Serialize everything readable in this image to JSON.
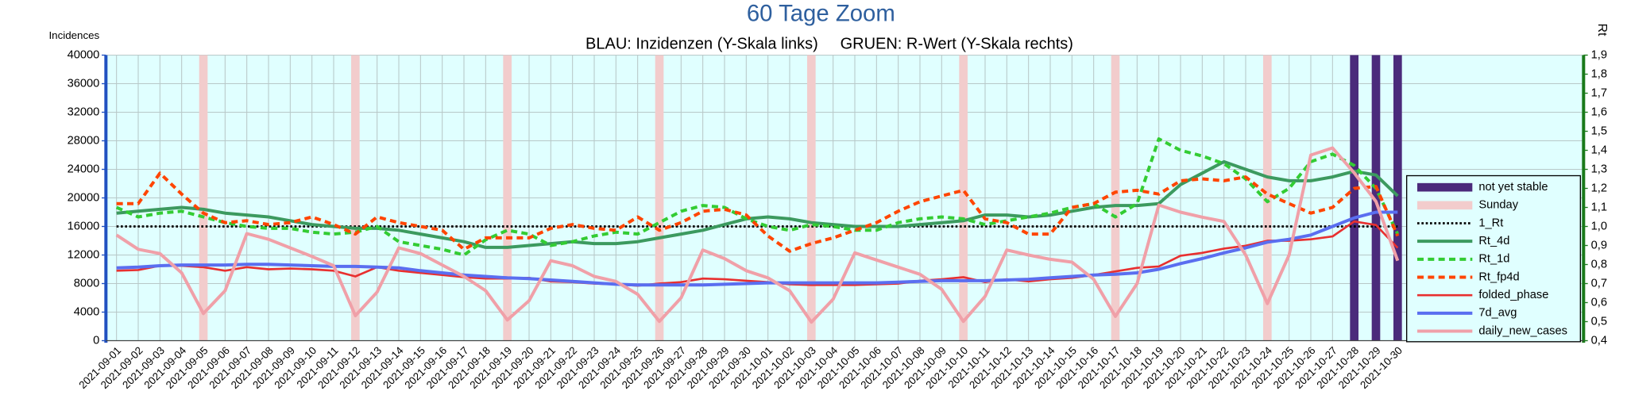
{
  "chart_data": {
    "type": "line",
    "title": "60 Tage Zoom",
    "subtitle": "BLAU: Inzidenzen (Y-Skala links)     GRUEN: R-Wert (Y-Skala rechts)",
    "ylabel": "Incidences",
    "y2label": "Rt",
    "categories": [
      "2021-09-01",
      "2021-09-02",
      "2021-09-03",
      "2021-09-04",
      "2021-09-05",
      "2021-09-06",
      "2021-09-07",
      "2021-09-08",
      "2021-09-09",
      "2021-09-10",
      "2021-09-11",
      "2021-09-12",
      "2021-09-13",
      "2021-09-14",
      "2021-09-15",
      "2021-09-16",
      "2021-09-17",
      "2021-09-18",
      "2021-09-19",
      "2021-09-20",
      "2021-09-21",
      "2021-09-22",
      "2021-09-23",
      "2021-09-24",
      "2021-09-25",
      "2021-09-26",
      "2021-09-27",
      "2021-09-28",
      "2021-09-29",
      "2021-09-30",
      "2021-10-01",
      "2021-10-02",
      "2021-10-03",
      "2021-10-04",
      "2021-10-05",
      "2021-10-06",
      "2021-10-07",
      "2021-10-08",
      "2021-10-09",
      "2021-10-10",
      "2021-10-11",
      "2021-10-12",
      "2021-10-13",
      "2021-10-14",
      "2021-10-15",
      "2021-10-16",
      "2021-10-17",
      "2021-10-18",
      "2021-10-19",
      "2021-10-20",
      "2021-10-21",
      "2021-10-22",
      "2021-10-23",
      "2021-10-24",
      "2021-10-25",
      "2021-10-26",
      "2021-10-27",
      "2021-10-28",
      "2021-10-29",
      "2021-10-30"
    ],
    "ylim": [
      0,
      40000
    ],
    "yticks": [
      0,
      4000,
      8000,
      12000,
      16000,
      20000,
      24000,
      28000,
      32000,
      36000,
      40000
    ],
    "y2lim": [
      0.4,
      1.9
    ],
    "y2ticks": [
      {
        "value": 0.4,
        "label": "0,4"
      },
      {
        "value": 0.5,
        "label": "0,5"
      },
      {
        "value": 0.6,
        "label": "0,6"
      },
      {
        "value": 0.7,
        "label": "0,7"
      },
      {
        "value": 0.8,
        "label": "0,8"
      },
      {
        "value": 0.9,
        "label": "0,9"
      },
      {
        "value": 1.0,
        "label": "1,0"
      },
      {
        "value": 1.1,
        "label": "1,1"
      },
      {
        "value": 1.2,
        "label": "1,2"
      },
      {
        "value": 1.3,
        "label": "1,3"
      },
      {
        "value": 1.4,
        "label": "1,4"
      },
      {
        "value": 1.5,
        "label": "1,5"
      },
      {
        "value": 1.6,
        "label": "1,6"
      },
      {
        "value": 1.7,
        "label": "1,7"
      },
      {
        "value": 1.8,
        "label": "1,8"
      },
      {
        "value": 1.9,
        "label": "1,9"
      }
    ],
    "grid": true,
    "legend": "right",
    "series": [
      {
        "name": "not yet stable",
        "color": "#4b2a7b",
        "style": "band",
        "width": 8,
        "values": [
          null,
          null,
          null,
          null,
          null,
          null,
          null,
          null,
          null,
          null,
          null,
          null,
          null,
          null,
          null,
          null,
          null,
          null,
          null,
          null,
          null,
          null,
          null,
          null,
          null,
          null,
          null,
          null,
          null,
          null,
          null,
          null,
          null,
          null,
          null,
          null,
          null,
          null,
          null,
          null,
          null,
          null,
          null,
          null,
          null,
          null,
          null,
          null,
          null,
          null,
          null,
          null,
          null,
          null,
          null,
          null,
          null,
          40000,
          40000,
          40000
        ]
      },
      {
        "name": "Sunday",
        "color": "#f2cccc",
        "style": "band",
        "width": 8,
        "values": [
          null,
          null,
          null,
          null,
          40000,
          null,
          null,
          null,
          null,
          null,
          null,
          40000,
          null,
          null,
          null,
          null,
          null,
          null,
          40000,
          null,
          null,
          null,
          null,
          null,
          null,
          40000,
          null,
          null,
          null,
          null,
          null,
          null,
          40000,
          null,
          null,
          null,
          null,
          null,
          null,
          40000,
          null,
          null,
          null,
          null,
          null,
          null,
          40000,
          null,
          null,
          null,
          null,
          null,
          null,
          40000,
          null,
          null,
          null,
          null,
          null,
          null
        ]
      },
      {
        "name": "1_Rt",
        "color": "#000000",
        "style": "dotted",
        "width": 2,
        "axis": "y2",
        "values": [
          1,
          1,
          1,
          1,
          1,
          1,
          1,
          1,
          1,
          1,
          1,
          1,
          1,
          1,
          1,
          1,
          1,
          1,
          1,
          1,
          1,
          1,
          1,
          1,
          1,
          1,
          1,
          1,
          1,
          1,
          1,
          1,
          1,
          1,
          1,
          1,
          1,
          1,
          1,
          1,
          1,
          1,
          1,
          1,
          1,
          1,
          1,
          1,
          1,
          1,
          1,
          1,
          1,
          1,
          1,
          1,
          1,
          1,
          1,
          1
        ]
      },
      {
        "name": "Rt_4d",
        "color": "#3c9a5f",
        "style": "solid",
        "width": 3,
        "axis": "y2",
        "values": [
          1.07,
          1.08,
          1.09,
          1.1,
          1.09,
          1.07,
          1.06,
          1.05,
          1.03,
          1.01,
          1.0,
          0.99,
          0.99,
          0.98,
          0.96,
          0.94,
          0.92,
          0.89,
          0.89,
          0.9,
          0.91,
          0.92,
          0.91,
          0.91,
          0.92,
          0.94,
          0.96,
          0.98,
          1.01,
          1.04,
          1.05,
          1.04,
          1.02,
          1.01,
          1.0,
          1.0,
          1.0,
          1.01,
          1.02,
          1.03,
          1.06,
          1.06,
          1.05,
          1.06,
          1.08,
          1.1,
          1.11,
          1.11,
          1.12,
          1.22,
          1.28,
          1.34,
          1.3,
          1.26,
          1.24,
          1.24,
          1.26,
          1.29,
          1.27,
          1.16
        ]
      },
      {
        "name": "Rt_1d",
        "color": "#33cc33",
        "style": "dashed",
        "width": 3,
        "axis": "y2",
        "values": [
          1.1,
          1.05,
          1.07,
          1.08,
          1.05,
          1.02,
          1.0,
          0.99,
          0.99,
          0.97,
          0.96,
          0.97,
          1.0,
          0.92,
          0.9,
          0.88,
          0.85,
          0.93,
          0.98,
          0.96,
          0.9,
          0.92,
          0.95,
          0.97,
          0.96,
          1.02,
          1.08,
          1.11,
          1.1,
          1.04,
          1.0,
          0.98,
          1.01,
          1.0,
          0.98,
          0.98,
          1.02,
          1.04,
          1.05,
          1.04,
          1.01,
          1.03,
          1.05,
          1.07,
          1.1,
          1.12,
          1.05,
          1.12,
          1.46,
          1.4,
          1.37,
          1.33,
          1.25,
          1.13,
          1.2,
          1.34,
          1.38,
          1.32,
          1.2,
          0.96
        ]
      },
      {
        "name": "Rt_fp4d",
        "color": "#ff4500",
        "style": "dashed",
        "width": 3,
        "axis": "y2",
        "values": [
          1.12,
          1.12,
          1.28,
          1.17,
          1.07,
          1.02,
          1.03,
          1.01,
          1.02,
          1.05,
          1.01,
          0.96,
          1.05,
          1.02,
          1.0,
          0.98,
          0.88,
          0.94,
          0.94,
          0.94,
          0.99,
          1.01,
          0.99,
          0.98,
          1.05,
          0.98,
          1.02,
          1.08,
          1.09,
          1.06,
          0.95,
          0.87,
          0.91,
          0.94,
          0.98,
          1.02,
          1.08,
          1.13,
          1.16,
          1.19,
          1.04,
          1.02,
          0.96,
          0.96,
          1.1,
          1.12,
          1.18,
          1.19,
          1.17,
          1.24,
          1.25,
          1.24,
          1.26,
          1.17,
          1.12,
          1.07,
          1.1,
          1.2,
          1.21,
          0.95
        ]
      },
      {
        "name": "folded_phase",
        "color": "#e83030",
        "style": "solid",
        "width": 2,
        "values": [
          9800,
          9900,
          10500,
          10500,
          10300,
          9800,
          10300,
          10000,
          10100,
          10000,
          9800,
          9000,
          10300,
          9800,
          9500,
          9200,
          8900,
          8700,
          8700,
          8800,
          8300,
          8200,
          8000,
          7900,
          7700,
          8000,
          8200,
          8700,
          8600,
          8400,
          8200,
          7900,
          7800,
          7800,
          7800,
          7900,
          8000,
          8400,
          8600,
          8900,
          8200,
          8600,
          8300,
          8600,
          8800,
          9200,
          9700,
          10200,
          10400,
          11900,
          12300,
          12900,
          13300,
          14000,
          14000,
          14200,
          14600,
          16700,
          16200,
          13000
        ]
      },
      {
        "name": "7d_avg",
        "color": "#5a6ef0",
        "style": "solid",
        "width": 3,
        "values": [
          10200,
          10300,
          10500,
          10600,
          10600,
          10600,
          10700,
          10700,
          10600,
          10500,
          10400,
          10400,
          10300,
          10200,
          9800,
          9500,
          9200,
          9000,
          8800,
          8700,
          8500,
          8300,
          8100,
          7900,
          7800,
          7800,
          7800,
          7800,
          7900,
          8000,
          8100,
          8100,
          8100,
          8100,
          8100,
          8100,
          8200,
          8300,
          8400,
          8400,
          8400,
          8500,
          8600,
          8800,
          9000,
          9200,
          9300,
          9500,
          10000,
          10800,
          11500,
          12300,
          13000,
          13800,
          14200,
          14800,
          16000,
          17200,
          18000,
          18000
        ]
      },
      {
        "name": "daily_new_cases",
        "color": "#f0a0a8",
        "style": "solid",
        "width": 3,
        "values": [
          14800,
          12800,
          12200,
          9500,
          3800,
          7000,
          15000,
          14200,
          13000,
          11800,
          10500,
          3500,
          6800,
          13000,
          12200,
          10600,
          9000,
          7000,
          2900,
          5600,
          11200,
          10500,
          9000,
          8300,
          6500,
          2700,
          6000,
          12700,
          11500,
          9800,
          8800,
          7000,
          2600,
          5800,
          12300,
          11300,
          10300,
          9300,
          7200,
          2700,
          6200,
          12700,
          12000,
          11400,
          11000,
          8600,
          3400,
          8000,
          19000,
          18000,
          17300,
          16700,
          12000,
          5200,
          12000,
          26000,
          27000,
          23500,
          19500,
          11200
        ]
      }
    ]
  }
}
